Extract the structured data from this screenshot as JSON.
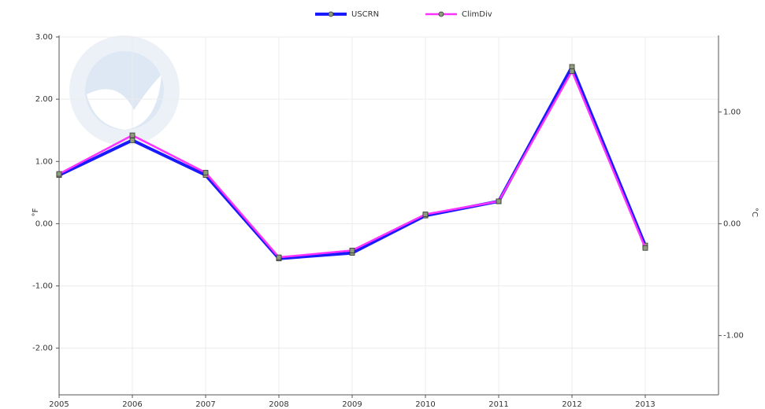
{
  "chart_data": {
    "type": "line",
    "x": [
      2005,
      2006,
      2007,
      2008,
      2009,
      2010,
      2011,
      2012,
      2013
    ],
    "xlim": [
      2005,
      2014
    ],
    "xticks": [
      2005,
      2006,
      2007,
      2008,
      2009,
      2010,
      2011,
      2012,
      2013
    ],
    "ylim": [
      -2.75,
      3.0
    ],
    "yticks": [
      {
        "value": 3,
        "label": "3.00"
      },
      {
        "value": 2,
        "label": "2.00"
      },
      {
        "value": 1,
        "label": "1.00"
      },
      {
        "value": 0,
        "label": "0.00"
      },
      {
        "value": -1,
        "label": "-1.00"
      },
      {
        "value": -2,
        "label": "-2.00"
      }
    ],
    "y2lim": [
      -1.53,
      1.67
    ],
    "y2ticks": [
      {
        "value": 1,
        "label": "1.00"
      },
      {
        "value": 0,
        "label": "0.00"
      },
      {
        "value": -1,
        "label": "-1.00"
      }
    ],
    "y_label": "°F",
    "y2_label": "°C",
    "grid": true,
    "legend": "top",
    "series": [
      {
        "name": "USCRN",
        "color": "#1a1aff",
        "values": [
          0.78,
          1.34,
          0.78,
          -0.56,
          -0.47,
          0.13,
          0.36,
          2.52,
          -0.35
        ]
      },
      {
        "name": "ClimDiv",
        "color": "#ff33ff",
        "values": [
          0.8,
          1.42,
          0.82,
          -0.54,
          -0.43,
          0.15,
          0.36,
          2.45,
          -0.39
        ]
      }
    ]
  }
}
